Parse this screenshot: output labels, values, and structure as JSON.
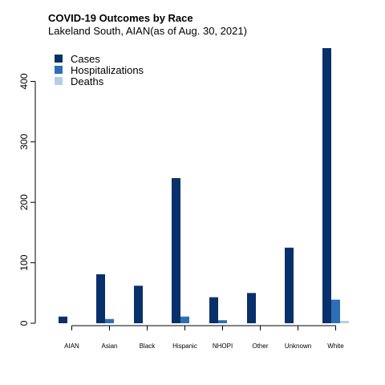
{
  "chart_data": {
    "type": "bar",
    "title": "COVID-19 Outcomes by Race",
    "subtitle": "Lakeland South, AIAN(as of Aug. 30, 2021)",
    "xlabel": "",
    "ylabel": "",
    "categories": [
      "AIAN",
      "Asian",
      "Black",
      "Hispanic",
      "NHOPI",
      "Other",
      "Unknown",
      "White"
    ],
    "series": [
      {
        "name": "Cases",
        "color": "#08306b",
        "values": [
          11,
          81,
          62,
          240,
          43,
          50,
          125,
          455
        ]
      },
      {
        "name": "Hospitalizations",
        "color": "#2c6fb5",
        "values": [
          0,
          7,
          0,
          11,
          5,
          0,
          0,
          39
        ]
      },
      {
        "name": "Deaths",
        "color": "#b3cfe6",
        "values": [
          0,
          0,
          0,
          0,
          0,
          0,
          0,
          4
        ]
      }
    ],
    "ylim": [
      0,
      455
    ],
    "yticks": [
      0,
      100,
      200,
      300,
      400
    ],
    "grid": false,
    "legend_position": "top-left"
  }
}
